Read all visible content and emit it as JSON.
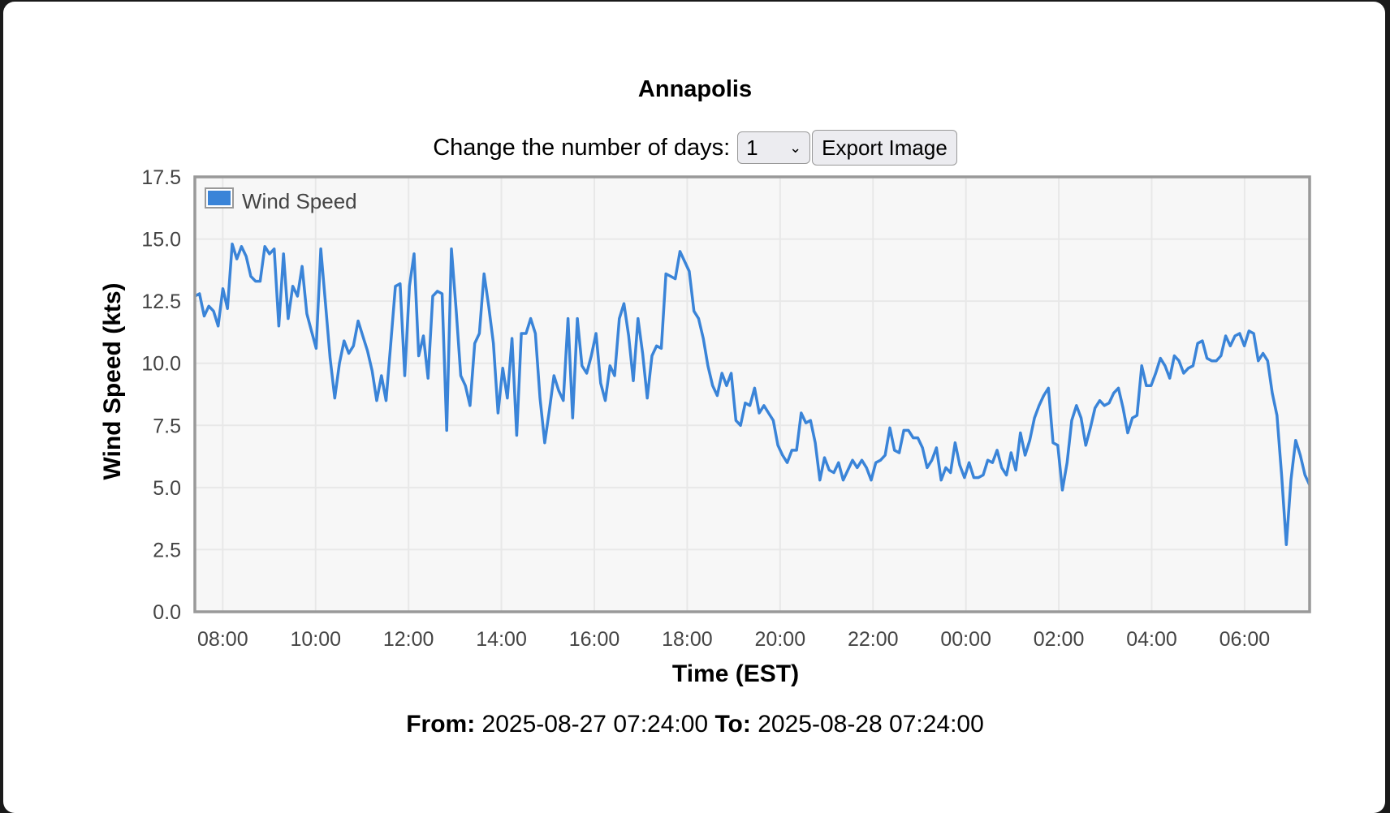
{
  "header": {
    "title": "Annapolis"
  },
  "controls": {
    "days_label": "Change the number of days:",
    "days_value": "1",
    "export_label": "Export Image"
  },
  "footer": {
    "from_label": "From:",
    "from_value": "2025-08-27 07:24:00",
    "to_label": "To:",
    "to_value": "2025-08-28 07:24:00"
  },
  "colors": {
    "series": "#3a84d8",
    "plot_bg": "#f7f7f7",
    "grid": "#e8e8e8",
    "border": "#999999"
  },
  "chart_data": {
    "type": "line",
    "title": "Annapolis",
    "xlabel": "Time (EST)",
    "ylabel": "Wind Speed (kts)",
    "x_start": "2025-08-27 07:24",
    "x_end": "2025-08-28 07:24",
    "x_range_hours": [
      0,
      24
    ],
    "ylim": [
      0,
      17.5
    ],
    "yticks": [
      "0.0",
      "2.5",
      "5.0",
      "7.5",
      "10.0",
      "12.5",
      "15.0",
      "17.5"
    ],
    "xticks": [
      "08:00",
      "10:00",
      "12:00",
      "14:00",
      "16:00",
      "18:00",
      "20:00",
      "22:00",
      "00:00",
      "02:00",
      "04:00",
      "06:00"
    ],
    "xticks_hours_from_start": [
      0.6,
      2.6,
      4.6,
      6.6,
      8.6,
      10.6,
      12.6,
      14.6,
      16.6,
      18.6,
      20.6,
      22.6
    ],
    "grid": true,
    "legend": {
      "position": "top-left",
      "entries": [
        "Wind Speed"
      ]
    },
    "series": [
      {
        "name": "Wind Speed",
        "values": [
          12.7,
          12.8,
          11.9,
          12.3,
          12.1,
          11.5,
          13.0,
          12.2,
          14.8,
          14.2,
          14.7,
          14.3,
          13.5,
          13.3,
          13.3,
          14.7,
          14.4,
          14.6,
          11.5,
          14.4,
          11.8,
          13.1,
          12.7,
          13.9,
          12.0,
          11.3,
          10.6,
          14.6,
          12.4,
          10.2,
          8.6,
          10.0,
          10.9,
          10.4,
          10.7,
          11.7,
          11.1,
          10.5,
          9.7,
          8.5,
          9.5,
          8.5,
          10.8,
          13.1,
          13.2,
          9.5,
          13.1,
          14.4,
          10.3,
          11.1,
          9.4,
          12.7,
          12.9,
          12.8,
          7.3,
          14.6,
          12.2,
          9.5,
          9.1,
          8.3,
          10.8,
          11.2,
          13.6,
          12.3,
          10.8,
          8.0,
          9.8,
          8.6,
          11.0,
          7.1,
          11.2,
          11.2,
          11.8,
          11.2,
          8.6,
          6.8,
          8.1,
          9.5,
          8.9,
          8.5,
          11.8,
          7.8,
          11.8,
          9.9,
          9.6,
          10.3,
          11.2,
          9.2,
          8.5,
          9.9,
          9.5,
          11.8,
          12.4,
          11.1,
          9.3,
          11.8,
          10.4,
          8.6,
          10.3,
          10.7,
          10.6,
          13.6,
          13.5,
          13.4,
          14.5,
          14.1,
          13.7,
          12.1,
          11.8,
          11.0,
          9.9,
          9.1,
          8.7,
          9.6,
          9.1,
          9.6,
          7.7,
          7.5,
          8.4,
          8.3,
          9.0,
          8.0,
          8.3,
          8.0,
          7.7,
          6.7,
          6.3,
          6.0,
          6.5,
          6.5,
          8.0,
          7.6,
          7.7,
          6.8,
          5.3,
          6.2,
          5.7,
          5.6,
          6.0,
          5.3,
          5.7,
          6.1,
          5.8,
          6.1,
          5.8,
          5.3,
          6.0,
          6.1,
          6.3,
          7.4,
          6.5,
          6.4,
          7.3,
          7.3,
          7.0,
          7.0,
          6.6,
          5.8,
          6.1,
          6.6,
          5.3,
          5.8,
          5.6,
          6.8,
          5.9,
          5.4,
          6.0,
          5.4,
          5.4,
          5.5,
          6.1,
          6.0,
          6.5,
          5.8,
          5.5,
          6.4,
          5.7,
          7.2,
          6.3,
          6.9,
          7.8,
          8.3,
          8.7,
          9.0,
          6.8,
          6.7,
          4.9,
          6.0,
          7.7,
          8.3,
          7.8,
          6.7,
          7.4,
          8.2,
          8.5,
          8.3,
          8.4,
          8.8,
          9.0,
          8.2,
          7.2,
          7.8,
          7.9,
          9.9,
          9.1,
          9.1,
          9.6,
          10.2,
          9.9,
          9.4,
          10.3,
          10.1,
          9.6,
          9.8,
          9.9,
          10.8,
          10.9,
          10.2,
          10.1,
          10.1,
          10.3,
          11.1,
          10.7,
          11.1,
          11.2,
          10.7,
          11.3,
          11.2,
          10.1,
          10.4,
          10.1,
          8.8,
          7.9,
          5.5,
          2.7,
          5.3,
          6.9,
          6.3,
          5.5,
          5.1
        ]
      }
    ]
  }
}
